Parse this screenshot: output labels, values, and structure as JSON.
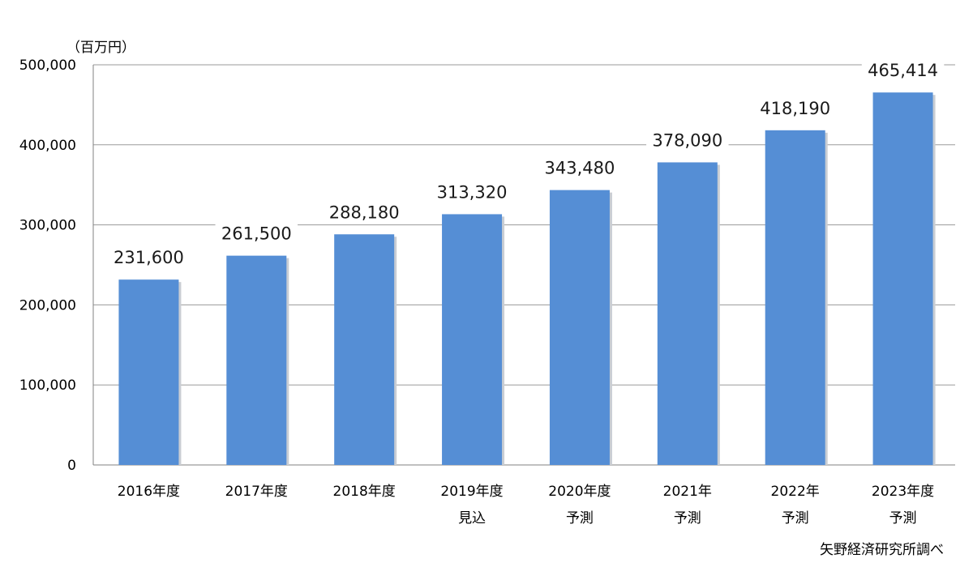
{
  "chart_data": {
    "type": "bar",
    "unit_label": "（百万円）",
    "source": "矢野経済研究所調べ",
    "categories": [
      [
        "2016年度"
      ],
      [
        "2017年度"
      ],
      [
        "2018年度"
      ],
      [
        "2019年度",
        "見込"
      ],
      [
        "2020年度",
        "予測"
      ],
      [
        "2021年",
        "予測"
      ],
      [
        "2022年",
        "予測"
      ],
      [
        "2023年度",
        "予測"
      ]
    ],
    "values": [
      231600,
      261500,
      288180,
      313320,
      343480,
      378090,
      418190,
      465414
    ],
    "value_labels": [
      "231,600",
      "261,500",
      "288,180",
      "313,320",
      "343,480",
      "378,090",
      "418,190",
      "465,414"
    ],
    "yticks": [
      0,
      100000,
      200000,
      300000,
      400000,
      500000
    ],
    "ytick_labels": [
      "0",
      "100,000",
      "200,000",
      "300,000",
      "400,000",
      "500,000"
    ],
    "ylim": [
      0,
      500000
    ],
    "grid": true,
    "bar_color": "#558ed5"
  }
}
